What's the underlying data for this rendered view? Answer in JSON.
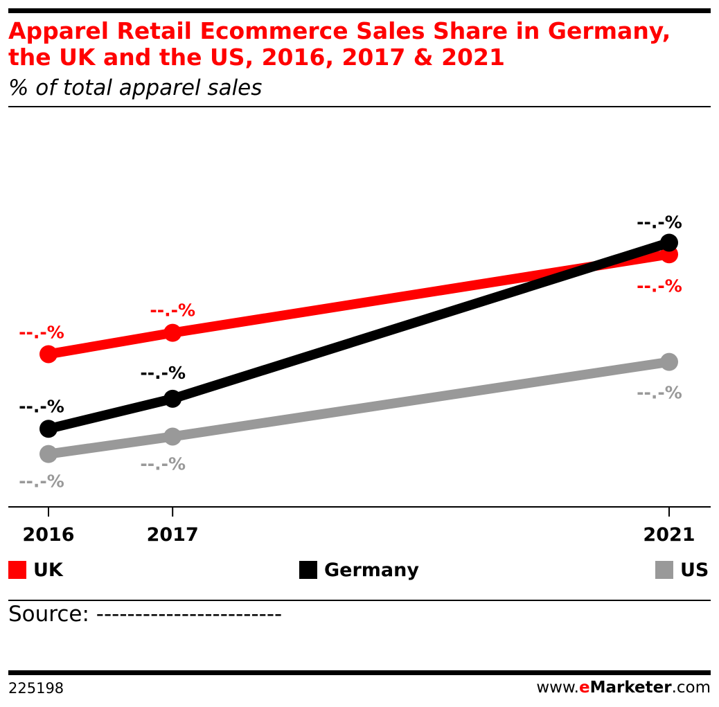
{
  "header": {
    "title_line1": "Apparel Retail Ecommerce Sales Share in Germany,",
    "title_line2": "the UK and the US, 2016, 2017 & 2021",
    "subtitle": "% of total apparel sales"
  },
  "chart_data": {
    "type": "line",
    "title": "Apparel Retail Ecommerce Sales Share in Germany, the UK and the US, 2016, 2017 & 2021",
    "subtitle": "% of total apparel sales",
    "x": [
      "2016",
      "2017",
      "2021"
    ],
    "x_numeric": [
      2016,
      2017,
      2021
    ],
    "grid": false,
    "legend_placement": "bottom",
    "data_labels_masked": true,
    "series": [
      {
        "name": "UK",
        "color": "#ff0000",
        "values": [
          21.2,
          23.4,
          31.5
        ],
        "labels": [
          "--.-%",
          "--.-%",
          "--.-%"
        ]
      },
      {
        "name": "Germany",
        "color": "#000000",
        "values": [
          13.5,
          16.6,
          32.7
        ],
        "labels": [
          "--.-%",
          "--.-%",
          "--.-%"
        ]
      },
      {
        "name": "US",
        "color": "#999999",
        "values": [
          10.9,
          12.7,
          20.4
        ],
        "labels": [
          "--.-%",
          "--.-%",
          "--.-%"
        ]
      }
    ]
  },
  "legend": {
    "items": [
      {
        "label": "UK",
        "color": "#ff0000"
      },
      {
        "label": "Germany",
        "color": "#000000"
      },
      {
        "label": "US",
        "color": "#999999"
      }
    ]
  },
  "footer": {
    "source": "Source: ------------------------",
    "chart_id": "225198",
    "brand_prefix": "www.",
    "brand_e": "e",
    "brand_name": "Marketer",
    "brand_suffix": ".com"
  }
}
